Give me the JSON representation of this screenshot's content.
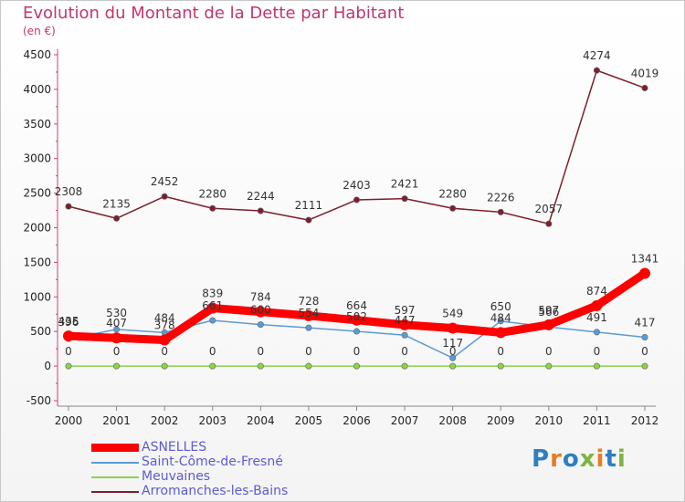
{
  "chart_data": {
    "type": "line",
    "title": "Evolution du Montant de la Dette par Habitant",
    "subtitle": "(en €)",
    "x": [
      "2000",
      "2001",
      "2002",
      "2003",
      "2004",
      "2005",
      "2006",
      "2007",
      "2008",
      "2009",
      "2010",
      "2011",
      "2012"
    ],
    "yticks": [
      "-500",
      "0",
      "500",
      "1000",
      "1500",
      "2000",
      "2500",
      "3000",
      "3500",
      "4000",
      "4500"
    ],
    "ylim": [
      -500,
      4500
    ],
    "grid": false,
    "legend_position": "bottom-left",
    "series": [
      {
        "name": "ASNELLES",
        "color": "#ff0000",
        "values": [
          435,
          407,
          378,
          839,
          784,
          728,
          664,
          597,
          549,
          484,
          597,
          874,
          1341
        ]
      },
      {
        "name": "Saint-Côme-de-Fresné",
        "color": "#5b9bd5",
        "values": [
          396,
          530,
          484,
          661,
          600,
          554,
          502,
          447,
          117,
          650,
          566,
          491,
          417
        ]
      },
      {
        "name": "Meuvaines",
        "color": "#8cd24b",
        "values": [
          0,
          0,
          0,
          0,
          0,
          0,
          0,
          0,
          0,
          0,
          0,
          0,
          0
        ]
      },
      {
        "name": "Arromanches-les-Bains",
        "color": "#7b1f2b",
        "values": [
          2308,
          2135,
          2452,
          2280,
          2244,
          2111,
          2403,
          2421,
          2280,
          2226,
          2057,
          4274,
          4019
        ]
      }
    ]
  },
  "logo": {
    "text": "Proxiti"
  }
}
